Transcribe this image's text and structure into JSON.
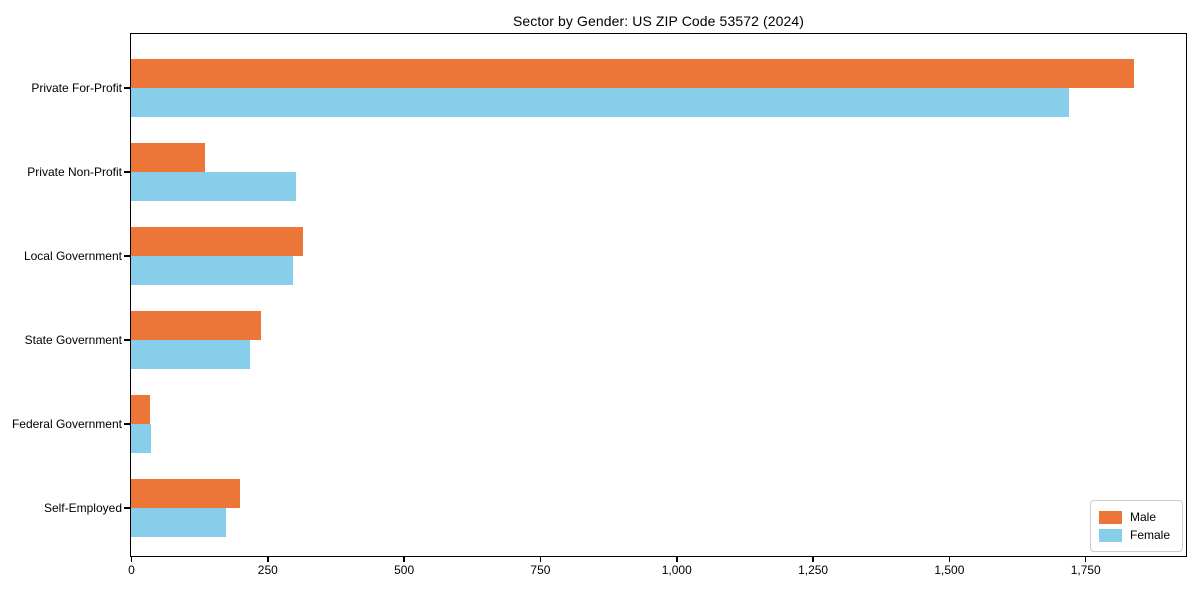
{
  "chart_data": {
    "type": "bar",
    "orientation": "horizontal",
    "title": "Sector by Gender: US ZIP Code 53572 (2024)",
    "categories": [
      "Private For-Profit",
      "Private Non-Profit",
      "Local Government",
      "State Government",
      "Federal Government",
      "Self-Employed"
    ],
    "series": [
      {
        "name": "Male",
        "color": "#ec7637",
        "values": [
          1840,
          135,
          315,
          238,
          34,
          200
        ]
      },
      {
        "name": "Female",
        "color": "#87ceeb",
        "values": [
          1720,
          303,
          297,
          218,
          36,
          175
        ]
      }
    ],
    "xlabel": "",
    "ylabel": "",
    "xticks": [
      0,
      250,
      500,
      750,
      1000,
      1250,
      1500,
      1750
    ],
    "xlim": [
      0,
      1933
    ],
    "grid": false,
    "background": "#ffffff",
    "axis_color": "#000000",
    "legend": {
      "position": "lower right",
      "entries": [
        "Male",
        "Female"
      ]
    }
  }
}
